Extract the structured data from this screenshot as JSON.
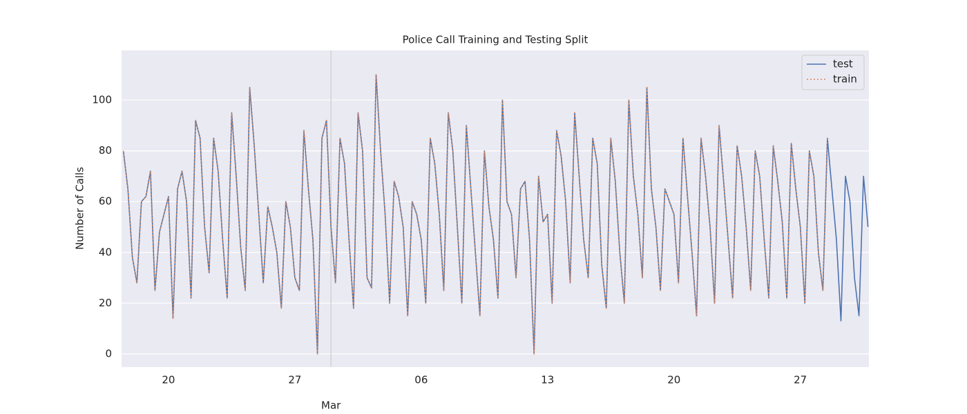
{
  "chart_data": {
    "type": "line",
    "title": "Police Call Training and Testing Split",
    "y_label": "Number of Calls",
    "x": [
      48.5,
      48.75,
      49,
      49.25,
      49.5,
      49.75,
      50,
      50.25,
      50.5,
      50.75,
      51,
      51.25,
      51.5,
      51.75,
      52,
      52.25,
      52.5,
      52.75,
      53,
      53.25,
      53.5,
      53.75,
      54,
      54.25,
      54.5,
      54.75,
      55,
      55.25,
      55.5,
      55.75,
      56,
      56.25,
      56.5,
      56.75,
      57,
      57.25,
      57.5,
      57.75,
      58,
      58.25,
      58.5,
      58.75,
      59,
      59.25,
      59.5,
      59.75,
      60,
      60.25,
      60.5,
      60.75,
      61,
      61.25,
      61.5,
      61.75,
      62,
      62.25,
      62.5,
      62.75,
      63,
      63.25,
      63.5,
      63.75,
      64,
      64.25,
      64.5,
      64.75,
      65,
      65.25,
      65.5,
      65.75,
      66,
      66.25,
      66.5,
      66.75,
      67,
      67.25,
      67.5,
      67.75,
      68,
      68.25,
      68.5,
      68.75,
      69,
      69.25,
      69.5,
      69.75,
      70,
      70.25,
      70.5,
      70.75,
      71,
      71.25,
      71.5,
      71.75,
      72,
      72.25,
      72.5,
      72.75,
      73,
      73.25,
      73.5,
      73.75,
      74,
      74.25,
      74.5,
      74.75,
      75,
      75.25,
      75.5,
      75.75,
      76,
      76.25,
      76.5,
      76.75,
      77,
      77.25,
      77.5,
      77.75,
      78,
      78.25,
      78.5,
      78.75,
      79,
      79.25,
      79.5,
      79.75,
      80,
      80.25,
      80.5,
      80.75,
      81,
      81.25,
      81.5,
      81.75,
      82,
      82.25,
      82.5,
      82.75,
      83,
      83.25,
      83.5,
      83.75,
      84,
      84.25,
      84.5,
      84.75,
      85,
      85.25,
      85.5,
      85.75,
      86,
      86.25,
      86.5,
      86.75,
      87,
      87.25,
      87.5,
      87.75,
      88,
      88.25,
      88.5,
      88.75,
      89,
      89.25,
      89.5,
      89.75
    ],
    "series": [
      {
        "name": "test",
        "color": "#4c72b0",
        "dash": "none",
        "values": [
          80,
          65,
          38,
          28,
          60,
          62,
          72,
          25,
          48,
          55,
          62,
          14,
          65,
          72,
          60,
          22,
          92,
          85,
          50,
          32,
          85,
          72,
          45,
          22,
          95,
          70,
          42,
          25,
          105,
          82,
          55,
          28,
          58,
          50,
          40,
          18,
          60,
          50,
          30,
          25,
          88,
          65,
          45,
          0,
          85,
          92,
          50,
          28,
          85,
          75,
          45,
          18,
          95,
          80,
          30,
          26,
          110,
          80,
          55,
          20,
          68,
          62,
          50,
          15,
          60,
          55,
          45,
          20,
          85,
          75,
          55,
          25,
          95,
          80,
          50,
          20,
          90,
          65,
          40,
          15,
          80,
          58,
          45,
          22,
          100,
          60,
          55,
          30,
          65,
          68,
          45,
          0,
          70,
          52,
          55,
          20,
          88,
          78,
          60,
          28,
          95,
          70,
          45,
          30,
          85,
          75,
          35,
          18,
          85,
          68,
          40,
          20,
          100,
          70,
          55,
          30,
          105,
          65,
          50,
          25,
          65,
          60,
          55,
          28,
          85,
          62,
          40,
          15,
          85,
          70,
          50,
          20,
          90,
          68,
          45,
          22,
          82,
          70,
          50,
          25,
          80,
          70,
          45,
          22,
          82,
          68,
          52,
          22,
          83,
          65,
          50,
          20,
          80,
          70,
          40,
          25,
          85,
          65,
          45,
          13,
          70,
          60,
          30,
          15,
          70,
          50
        ]
      },
      {
        "name": "train",
        "color": "#dd8452",
        "dash": "2 3",
        "values": [
          80,
          65,
          38,
          28,
          60,
          62,
          72,
          25,
          48,
          55,
          62,
          14,
          65,
          72,
          60,
          22,
          92,
          85,
          50,
          32,
          85,
          72,
          45,
          22,
          95,
          70,
          42,
          25,
          105,
          82,
          55,
          28,
          58,
          50,
          40,
          18,
          60,
          50,
          30,
          25,
          88,
          65,
          45,
          0,
          85,
          92,
          50,
          28,
          85,
          75,
          45,
          18,
          95,
          80,
          30,
          26,
          110,
          80,
          55,
          20,
          68,
          62,
          50,
          15,
          60,
          55,
          45,
          20,
          85,
          75,
          55,
          25,
          95,
          80,
          50,
          20,
          90,
          65,
          40,
          15,
          80,
          58,
          45,
          22,
          100,
          60,
          55,
          30,
          65,
          68,
          45,
          0,
          70,
          52,
          55,
          20,
          88,
          78,
          60,
          28,
          95,
          70,
          45,
          30,
          85,
          75,
          35,
          18,
          85,
          68,
          40,
          20,
          100,
          70,
          55,
          30,
          105,
          65,
          50,
          25,
          65,
          60,
          55,
          28,
          85,
          62,
          40,
          15,
          85,
          70,
          50,
          20,
          90,
          68,
          45,
          22,
          82,
          70,
          50,
          25,
          80,
          70,
          45,
          22,
          82,
          68,
          52,
          22,
          83,
          65,
          50,
          20,
          80,
          70,
          40,
          25,
          85,
          null,
          null,
          null,
          null,
          null,
          null,
          null,
          null,
          null
        ]
      }
    ],
    "xlim": [
      48.4,
      89.8
    ],
    "xticks": [
      {
        "value": 60,
        "label": "Mar"
      }
    ],
    "xminorticks": [
      {
        "value": 51,
        "label": "20"
      },
      {
        "value": 58,
        "label": "27"
      },
      {
        "value": 65,
        "label": "06"
      },
      {
        "value": 72,
        "label": "13"
      },
      {
        "value": 79,
        "label": "20"
      },
      {
        "value": 86,
        "label": "27"
      }
    ],
    "ylim": [
      -5.2,
      119.6
    ],
    "yticks": [
      0,
      20,
      40,
      60,
      80,
      100
    ],
    "grid": true,
    "legend": "upper right"
  }
}
